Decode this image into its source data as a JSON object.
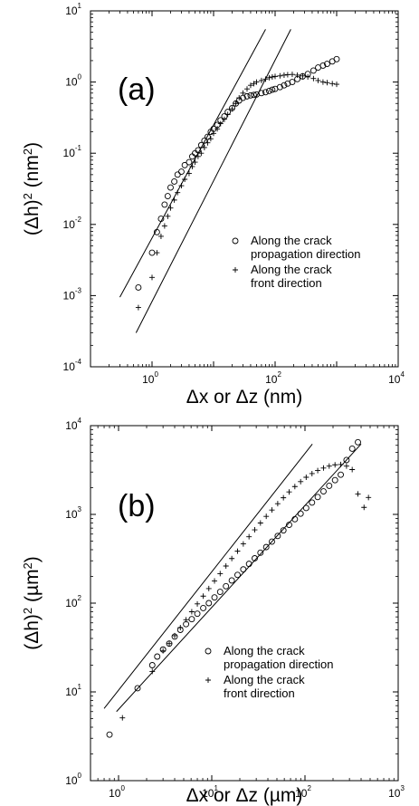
{
  "chart_data": [
    {
      "type": "scatter",
      "panel_label": "(a)",
      "xlabel": "Δx or Δz (nm)",
      "ylabel": "(Δh)2 (nm2)",
      "xscale": "log",
      "yscale": "log",
      "xlim": [
        0.1,
        10000
      ],
      "ylim": [
        0.0001,
        10
      ],
      "x_ticks": [
        {
          "base": "10",
          "exp": "0",
          "value": 1
        },
        {
          "base": "10",
          "exp": "2",
          "value": 100
        },
        {
          "base": "10",
          "exp": "4",
          "value": 10000
        }
      ],
      "y_ticks": [
        {
          "base": "10",
          "exp": "-4",
          "value": 0.0001
        },
        {
          "base": "10",
          "exp": "-3",
          "value": 0.001
        },
        {
          "base": "10",
          "exp": "-2",
          "value": 0.01
        },
        {
          "base": "10",
          "exp": "-1",
          "value": 0.1
        },
        {
          "base": "10",
          "exp": "0",
          "value": 1
        },
        {
          "base": "10",
          "exp": "1",
          "value": 10
        }
      ],
      "grid": false,
      "legend_position": "center-right",
      "series": [
        {
          "name": "Along the crack propagation direction",
          "marker": "circle",
          "x": [
            0.6,
            1.0,
            1.2,
            1.4,
            1.6,
            1.8,
            2.0,
            2.3,
            2.6,
            3.0,
            3.4,
            4.0,
            4.5,
            5.0,
            5.6,
            6.3,
            7.1,
            8.0,
            9.0,
            10,
            11.5,
            13,
            15,
            17,
            20,
            23,
            26,
            30,
            35,
            40,
            45,
            50,
            60,
            70,
            80,
            90,
            100,
            120,
            140,
            160,
            190,
            230,
            280,
            340,
            420,
            500,
            600,
            700,
            850,
            1000
          ],
          "y": [
            0.0013,
            0.004,
            0.0078,
            0.012,
            0.019,
            0.025,
            0.033,
            0.04,
            0.05,
            0.055,
            0.068,
            0.075,
            0.09,
            0.1,
            0.11,
            0.13,
            0.15,
            0.17,
            0.2,
            0.22,
            0.25,
            0.29,
            0.33,
            0.38,
            0.43,
            0.5,
            0.55,
            0.6,
            0.63,
            0.65,
            0.66,
            0.67,
            0.7,
            0.72,
            0.75,
            0.78,
            0.8,
            0.85,
            0.9,
            0.95,
            1.0,
            1.1,
            1.2,
            1.3,
            1.45,
            1.6,
            1.7,
            1.8,
            1.95,
            2.1
          ]
        },
        {
          "name": "Along the crack front direction",
          "marker": "plus",
          "x": [
            0.6,
            1.0,
            1.2,
            1.4,
            1.6,
            1.8,
            2.0,
            2.3,
            2.6,
            3.0,
            3.4,
            4.0,
            4.5,
            5.0,
            5.6,
            6.3,
            7.1,
            8.0,
            9.0,
            10,
            11.5,
            13,
            15,
            17,
            20,
            23,
            26,
            30,
            35,
            40,
            45,
            50,
            60,
            70,
            80,
            90,
            100,
            120,
            140,
            160,
            190,
            230,
            280,
            340,
            420,
            500,
            600,
            700,
            850,
            1000
          ],
          "y": [
            0.00068,
            0.0018,
            0.004,
            0.0068,
            0.0095,
            0.013,
            0.017,
            0.022,
            0.028,
            0.035,
            0.043,
            0.052,
            0.065,
            0.075,
            0.09,
            0.1,
            0.12,
            0.14,
            0.16,
            0.19,
            0.22,
            0.26,
            0.3,
            0.35,
            0.42,
            0.5,
            0.6,
            0.7,
            0.8,
            0.9,
            0.95,
            1.0,
            1.05,
            1.1,
            1.15,
            1.18,
            1.2,
            1.22,
            1.25,
            1.27,
            1.28,
            1.25,
            1.22,
            1.18,
            1.12,
            1.05,
            1.0,
            0.98,
            0.95,
            0.93
          ]
        }
      ],
      "fit_lines": [
        {
          "x": [
            0.3,
            70
          ],
          "y": [
            0.00095,
            5.5
          ]
        },
        {
          "x": [
            0.55,
            180
          ],
          "y": [
            0.0003,
            5.5
          ]
        }
      ],
      "legend": [
        {
          "marker": "circle",
          "lines": [
            "Along the crack",
            "propagation direction"
          ]
        },
        {
          "marker": "plus",
          "lines": [
            "Along the crack",
            "front direction"
          ]
        }
      ]
    },
    {
      "type": "scatter",
      "panel_label": "(b)",
      "xlabel": "Δx or Δz (µm)",
      "ylabel": "(Δh)2 (µm2)",
      "xscale": "log",
      "yscale": "log",
      "xlim": [
        0.5,
        1000
      ],
      "ylim": [
        1,
        10000
      ],
      "x_ticks": [
        {
          "base": "10",
          "exp": "0",
          "value": 1
        },
        {
          "base": "10",
          "exp": "1",
          "value": 10
        },
        {
          "base": "10",
          "exp": "2",
          "value": 100
        },
        {
          "base": "10",
          "exp": "3",
          "value": 1000
        }
      ],
      "y_ticks": [
        {
          "base": "10",
          "exp": "0",
          "value": 1
        },
        {
          "base": "10",
          "exp": "1",
          "value": 10
        },
        {
          "base": "10",
          "exp": "2",
          "value": 100
        },
        {
          "base": "10",
          "exp": "3",
          "value": 1000
        },
        {
          "base": "10",
          "exp": "4",
          "value": 10000
        }
      ],
      "grid": false,
      "legend_position": "bottom-right",
      "series": [
        {
          "name": "Along the crack propagation direction",
          "marker": "circle",
          "x": [
            0.8,
            1.6,
            2.3,
            2.6,
            3.0,
            3.5,
            4.0,
            4.6,
            5.3,
            6.1,
            7.0,
            8.1,
            9.3,
            10.7,
            12.3,
            14.2,
            16.4,
            18.9,
            21.8,
            25.1,
            28.9,
            33.3,
            38.4,
            44.2,
            51,
            58.7,
            67.6,
            77.9,
            89.8,
            103,
            119,
            137,
            158,
            182,
            210,
            242,
            279,
            321,
            370
          ],
          "y": [
            3.3,
            11,
            20,
            25,
            30,
            35,
            42,
            50,
            58,
            66,
            76,
            88,
            100,
            116,
            134,
            155,
            180,
            208,
            240,
            277,
            320,
            370,
            428,
            494,
            571,
            660,
            763,
            882,
            1020,
            1180,
            1360,
            1570,
            1820,
            2100,
            2430,
            2800,
            4100,
            5500,
            6500
          ]
        },
        {
          "name": "Along the crack front direction",
          "marker": "plus",
          "x": [
            1.1,
            2.3,
            3.0,
            3.5,
            4.0,
            4.6,
            5.3,
            6.1,
            7.0,
            8.1,
            9.3,
            10.7,
            12.3,
            14.2,
            16.4,
            18.9,
            21.8,
            25.1,
            28.9,
            33.3,
            38.4,
            44.2,
            51,
            58.7,
            67.6,
            77.9,
            89.8,
            103,
            119,
            137,
            158,
            182,
            210,
            242,
            279,
            321,
            370,
            430,
            480
          ],
          "y": [
            5.1,
            17,
            29,
            35,
            43,
            53,
            65,
            80,
            98,
            120,
            146,
            178,
            215,
            262,
            318,
            385,
            465,
            560,
            670,
            800,
            950,
            1120,
            1320,
            1540,
            1790,
            2060,
            2340,
            2620,
            2880,
            3120,
            3330,
            3500,
            3620,
            3650,
            3500,
            3200,
            1700,
            1200,
            1550
          ]
        }
      ],
      "fit_lines": [
        {
          "x": [
            0.7,
            120
          ],
          "y": [
            6.5,
            6200
          ]
        },
        {
          "x": [
            0.95,
            400
          ],
          "y": [
            6.0,
            6200
          ]
        }
      ],
      "legend": [
        {
          "marker": "circle",
          "lines": [
            "Along the crack",
            "propagation direction"
          ]
        },
        {
          "marker": "plus",
          "lines": [
            "Along the crack",
            "front direction"
          ]
        }
      ]
    }
  ]
}
